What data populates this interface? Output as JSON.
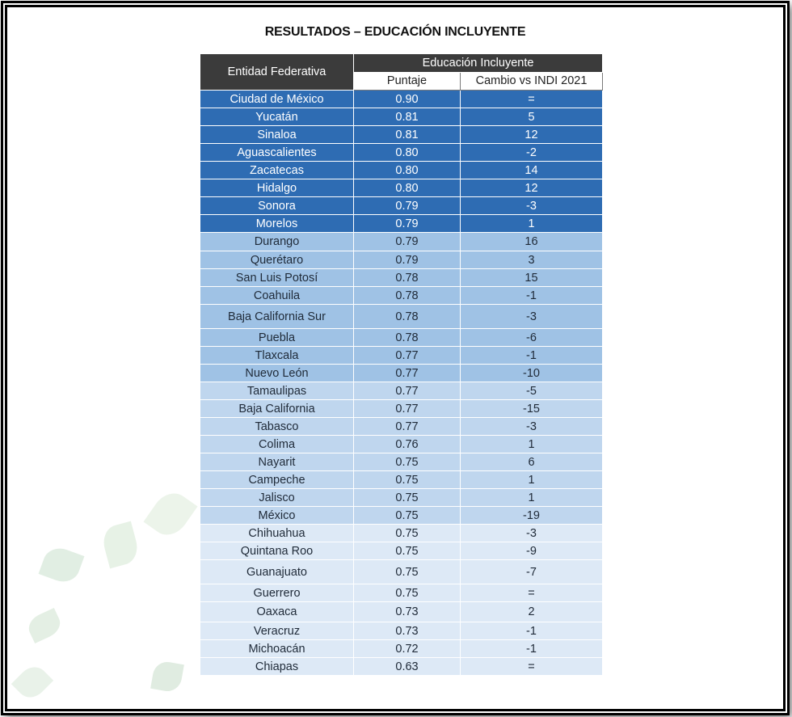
{
  "title": "RESULTADOS – EDUCACIÓN INCLUYENTE",
  "headers": {
    "entidad": "Entidad Federativa",
    "group": "Educación Incluyente",
    "puntaje": "Puntaje",
    "cambio": "Cambio vs INDI 2021"
  },
  "colors": {
    "tier1": "#2e6cb3",
    "tier2": "#9fc2e5",
    "tier3": "#bfd6ee",
    "tier4": "#dde9f6",
    "header": "#3b3b3b"
  },
  "rows": [
    {
      "entidad": "Ciudad de México",
      "puntaje": "0.90",
      "cambio": "=",
      "tier": 1
    },
    {
      "entidad": "Yucatán",
      "puntaje": "0.81",
      "cambio": "5",
      "tier": 1
    },
    {
      "entidad": "Sinaloa",
      "puntaje": "0.81",
      "cambio": "12",
      "tier": 1
    },
    {
      "entidad": "Aguascalientes",
      "puntaje": "0.80",
      "cambio": "-2",
      "tier": 1
    },
    {
      "entidad": "Zacatecas",
      "puntaje": "0.80",
      "cambio": "14",
      "tier": 1
    },
    {
      "entidad": "Hidalgo",
      "puntaje": "0.80",
      "cambio": "12",
      "tier": 1
    },
    {
      "entidad": "Sonora",
      "puntaje": "0.79",
      "cambio": "-3",
      "tier": 1
    },
    {
      "entidad": "Morelos",
      "puntaje": "0.79",
      "cambio": "1",
      "tier": 1
    },
    {
      "entidad": "Durango",
      "puntaje": "0.79",
      "cambio": "16",
      "tier": 2
    },
    {
      "entidad": "Querétaro",
      "puntaje": "0.79",
      "cambio": "3",
      "tier": 2
    },
    {
      "entidad": "San Luis Potosí",
      "puntaje": "0.78",
      "cambio": "15",
      "tier": 2
    },
    {
      "entidad": "Coahuila",
      "puntaje": "0.78",
      "cambio": "-1",
      "tier": 2
    },
    {
      "entidad": "Baja California Sur",
      "puntaje": "0.78",
      "cambio": "-3",
      "tier": 2
    },
    {
      "entidad": "Puebla",
      "puntaje": "0.78",
      "cambio": "-6",
      "tier": 2
    },
    {
      "entidad": "Tlaxcala",
      "puntaje": "0.77",
      "cambio": "-1",
      "tier": 2
    },
    {
      "entidad": "Nuevo León",
      "puntaje": "0.77",
      "cambio": "-10",
      "tier": 2
    },
    {
      "entidad": "Tamaulipas",
      "puntaje": "0.77",
      "cambio": "-5",
      "tier": 3
    },
    {
      "entidad": "Baja California",
      "puntaje": "0.77",
      "cambio": "-15",
      "tier": 3
    },
    {
      "entidad": "Tabasco",
      "puntaje": "0.77",
      "cambio": "-3",
      "tier": 3
    },
    {
      "entidad": "Colima",
      "puntaje": "0.76",
      "cambio": "1",
      "tier": 3
    },
    {
      "entidad": "Nayarit",
      "puntaje": "0.75",
      "cambio": "6",
      "tier": 3
    },
    {
      "entidad": "Campeche",
      "puntaje": "0.75",
      "cambio": "1",
      "tier": 3
    },
    {
      "entidad": "Jalisco",
      "puntaje": "0.75",
      "cambio": "1",
      "tier": 3
    },
    {
      "entidad": "México",
      "puntaje": "0.75",
      "cambio": "-19",
      "tier": 3
    },
    {
      "entidad": "Chihuahua",
      "puntaje": "0.75",
      "cambio": "-3",
      "tier": 4
    },
    {
      "entidad": "Quintana Roo",
      "puntaje": "0.75",
      "cambio": "-9",
      "tier": 4
    },
    {
      "entidad": "Guanajuato",
      "puntaje": "0.75",
      "cambio": "-7",
      "tier": 4
    },
    {
      "entidad": "Guerrero",
      "puntaje": "0.75",
      "cambio": "=",
      "tier": 4
    },
    {
      "entidad": "Oaxaca",
      "puntaje": "0.73",
      "cambio": "2",
      "tier": 4
    },
    {
      "entidad": "Veracruz",
      "puntaje": "0.73",
      "cambio": "-1",
      "tier": 4
    },
    {
      "entidad": "Michoacán",
      "puntaje": "0.72",
      "cambio": "-1",
      "tier": 4
    },
    {
      "entidad": "Chiapas",
      "puntaje": "0.63",
      "cambio": "=",
      "tier": 4
    }
  ]
}
